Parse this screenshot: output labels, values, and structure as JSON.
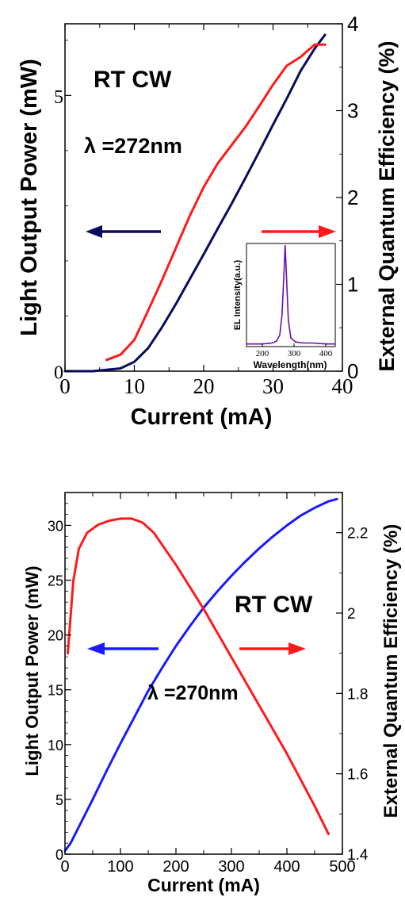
{
  "chart_data": [
    {
      "type": "line",
      "xlabel": "Current (mA)",
      "ylabel_left": "Light Output Power (mW)",
      "ylabel_right": "External Quantum Efficiency (%)",
      "xlim": [
        0,
        40
      ],
      "ylim_left": [
        0,
        6.3
      ],
      "ylim_right": [
        0,
        4
      ],
      "x_ticks": [
        0,
        10,
        20,
        30,
        40
      ],
      "y_left_ticks": [
        0,
        5
      ],
      "y_right_ticks": [
        0,
        1,
        2,
        3,
        4
      ],
      "annotations": {
        "condition": "RT CW",
        "wavelength": "λ =272nm"
      },
      "colors": {
        "power": "#0a0a5e",
        "eqe": "#ff1a1a",
        "power_arrow": "#0a0a5e",
        "eqe_arrow": "#ff1a1a"
      },
      "series": [
        {
          "axis": "left",
          "color": "#0a0a5e",
          "x": [
            0,
            4,
            8,
            10,
            12,
            14,
            16,
            18,
            20,
            22,
            24,
            26,
            28,
            30,
            32,
            34,
            36,
            37.5
          ],
          "y": [
            0,
            0,
            0.05,
            0.17,
            0.42,
            0.8,
            1.22,
            1.67,
            2.12,
            2.58,
            3.03,
            3.5,
            3.98,
            4.47,
            4.95,
            5.45,
            5.85,
            6.1
          ]
        },
        {
          "axis": "right",
          "color": "#ff1a1a",
          "x": [
            6,
            8,
            10,
            12,
            14,
            16,
            18,
            20,
            22,
            24,
            26,
            28,
            30,
            32,
            34,
            36,
            37.5
          ],
          "y": [
            0.13,
            0.19,
            0.36,
            0.7,
            1.05,
            1.42,
            1.79,
            2.12,
            2.39,
            2.6,
            2.81,
            3.05,
            3.3,
            3.52,
            3.62,
            3.76,
            3.76
          ]
        }
      ],
      "inset": {
        "type": "line",
        "xlabel": "Wavelength(nm)",
        "ylabel": "EL Intensity(a.u.)",
        "xlim": [
          150,
          430
        ],
        "x_ticks": [
          200,
          300,
          400
        ],
        "color": "#6a0dad",
        "x": [
          150,
          200,
          230,
          245,
          255,
          262,
          268,
          272,
          276,
          282,
          290,
          305,
          330,
          360,
          400,
          430
        ],
        "y": [
          0.01,
          0.01,
          0.02,
          0.04,
          0.1,
          0.3,
          0.7,
          1.0,
          0.7,
          0.25,
          0.07,
          0.03,
          0.02,
          0.02,
          0.01,
          0.01
        ]
      }
    },
    {
      "type": "line",
      "xlabel": "Current (mA)",
      "ylabel_left": "Light Output Power (mW)",
      "ylabel_right": "External Quantum Efficiency (%)",
      "xlim": [
        0,
        500
      ],
      "ylim_left": [
        0,
        33
      ],
      "ylim_right": [
        1.4,
        2.3
      ],
      "x_ticks": [
        0,
        100,
        200,
        300,
        400,
        500
      ],
      "y_left_ticks": [
        0,
        5,
        10,
        15,
        20,
        25,
        30
      ],
      "y_right_ticks": [
        1.4,
        1.6,
        1.8,
        2,
        2.2
      ],
      "y_right_tick_labels": [
        "1.4",
        "1.6",
        "1.8",
        "2",
        "2.2"
      ],
      "annotations": {
        "condition": "RT CW",
        "wavelength": "λ =270nm"
      },
      "colors": {
        "power": "#1a1aff",
        "eqe": "#ff1a1a",
        "power_arrow": "#1a1aff",
        "eqe_arrow": "#ff1a1a"
      },
      "series": [
        {
          "axis": "left",
          "color": "#1a1aff",
          "x": [
            0,
            10,
            25,
            50,
            75,
            100,
            125,
            150,
            175,
            200,
            225,
            250,
            275,
            300,
            325,
            350,
            375,
            400,
            425,
            450,
            475,
            490
          ],
          "y": [
            0.3,
            1.0,
            2.5,
            5.0,
            7.6,
            10.1,
            12.5,
            14.9,
            17.0,
            19.0,
            20.8,
            22.5,
            24.0,
            25.4,
            26.7,
            27.9,
            29.0,
            30.0,
            30.9,
            31.6,
            32.2,
            32.4
          ]
        },
        {
          "axis": "right",
          "color": "#ff1a1a",
          "x": [
            5,
            15,
            25,
            40,
            60,
            80,
            100,
            120,
            140,
            160,
            200,
            250,
            300,
            350,
            400,
            450,
            475
          ],
          "y": [
            1.9,
            2.08,
            2.16,
            2.2,
            2.22,
            2.23,
            2.235,
            2.235,
            2.225,
            2.2,
            2.12,
            2.01,
            1.89,
            1.77,
            1.65,
            1.52,
            1.45
          ]
        }
      ]
    }
  ]
}
